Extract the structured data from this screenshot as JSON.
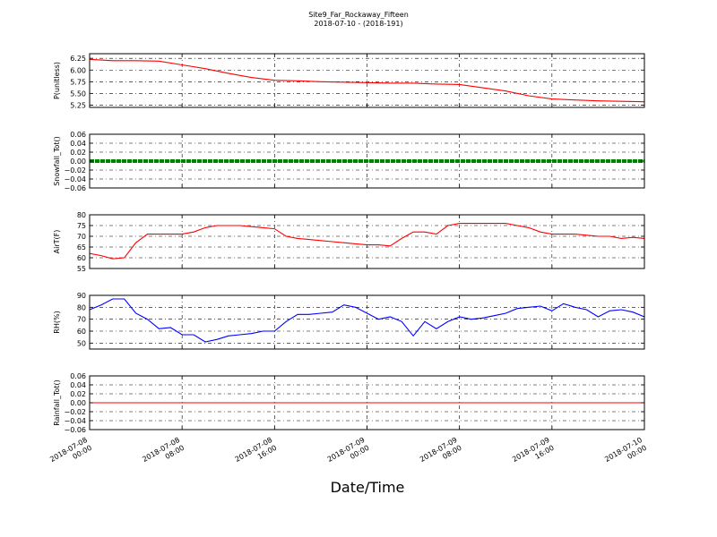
{
  "title": "Site9_Far_Rockaway_Fifteen",
  "subtitle": "2018-07-10 - (2018-191)",
  "xlabel": "Date/Time",
  "x_ticks": [
    [
      "2018-07-08",
      "00:00"
    ],
    [
      "2018-07-08",
      "08:00"
    ],
    [
      "2018-07-08",
      "16:00"
    ],
    [
      "2018-07-09",
      "00:00"
    ],
    [
      "2018-07-09",
      "08:00"
    ],
    [
      "2018-07-09",
      "16:00"
    ],
    [
      "2018-07-10",
      "00:00"
    ]
  ],
  "colors": {
    "red": "#ff0000",
    "green": "#008000",
    "blue": "#0000ff"
  },
  "chart_data": [
    {
      "type": "line",
      "ylabel": "P(unitless)",
      "color": "#ff0000",
      "ylim": [
        5.2,
        6.35
      ],
      "yticks": [
        "5.25",
        "5.50",
        "5.75",
        "6.00",
        "6.25"
      ],
      "ytick_values": [
        5.25,
        5.5,
        5.75,
        6.0,
        6.25
      ],
      "grid": true,
      "x": [
        0,
        2,
        4,
        6,
        8,
        10,
        12,
        14,
        16,
        18,
        20,
        22,
        24,
        26,
        28,
        30,
        32,
        34,
        36,
        38,
        40,
        42,
        44,
        46,
        48
      ],
      "values": [
        6.23,
        6.2,
        6.2,
        6.19,
        6.11,
        6.03,
        5.93,
        5.84,
        5.78,
        5.77,
        5.75,
        5.74,
        5.73,
        5.72,
        5.72,
        5.7,
        5.69,
        5.62,
        5.55,
        5.45,
        5.38,
        5.36,
        5.34,
        5.33,
        5.32
      ]
    },
    {
      "type": "line",
      "ylabel": "Snowfall_Tot()",
      "color": "#008000",
      "ylim": [
        -0.06,
        0.06
      ],
      "yticks": [
        "−0.06",
        "−0.04",
        "−0.02",
        "0.00",
        "0.02",
        "0.04",
        "0.06"
      ],
      "ytick_values": [
        -0.06,
        -0.04,
        -0.02,
        0.0,
        0.02,
        0.04,
        0.06
      ],
      "grid": true,
      "x": [
        0,
        48
      ],
      "values": [
        0.0,
        0.0
      ]
    },
    {
      "type": "line",
      "ylabel": "AirT(F)",
      "color": "#ff0000",
      "ylim": [
        55,
        80
      ],
      "yticks": [
        "55",
        "60",
        "65",
        "70",
        "75",
        "80"
      ],
      "ytick_values": [
        55,
        60,
        65,
        70,
        75,
        80
      ],
      "grid": true,
      "x": [
        0,
        1,
        2,
        3,
        4,
        5,
        6,
        7,
        8,
        9,
        10,
        11,
        12,
        13,
        14,
        15,
        16,
        17,
        18,
        19,
        20,
        21,
        22,
        23,
        24,
        25,
        26,
        27,
        28,
        29,
        30,
        31,
        32,
        33,
        34,
        35,
        36,
        37,
        38,
        39,
        40,
        41,
        42,
        43,
        44,
        45,
        46,
        47,
        48
      ],
      "values": [
        62,
        61,
        59.5,
        60,
        67,
        71,
        71,
        71,
        71,
        72,
        74,
        75,
        75,
        75,
        74.5,
        74,
        73.5,
        70,
        69,
        68.5,
        68,
        67.5,
        67,
        66.5,
        66,
        66,
        65.5,
        69,
        72,
        72,
        71,
        75,
        76,
        76,
        76,
        76,
        76,
        75,
        74,
        72,
        71,
        71,
        71,
        70.5,
        70,
        70,
        69,
        69.5,
        69
      ]
    },
    {
      "type": "line",
      "ylabel": "RH(%)",
      "color": "#0000ff",
      "ylim": [
        45,
        90
      ],
      "yticks": [
        "50",
        "60",
        "70",
        "80",
        "90"
      ],
      "ytick_values": [
        50,
        60,
        70,
        80,
        90
      ],
      "grid": true,
      "x": [
        0,
        1,
        2,
        3,
        4,
        5,
        6,
        7,
        8,
        9,
        10,
        11,
        12,
        13,
        14,
        15,
        16,
        17,
        18,
        19,
        20,
        21,
        22,
        23,
        24,
        25,
        26,
        27,
        28,
        29,
        30,
        31,
        32,
        33,
        34,
        35,
        36,
        37,
        38,
        39,
        40,
        41,
        42,
        43,
        44,
        45,
        46,
        47,
        48
      ],
      "values": [
        78,
        82,
        87,
        87,
        75,
        70,
        62,
        63,
        57,
        57,
        51,
        53,
        56,
        57,
        58,
        60,
        60,
        68,
        74,
        74,
        75,
        76,
        82,
        80,
        75,
        70,
        72,
        68,
        56,
        68,
        62,
        68,
        72,
        70,
        71,
        73,
        75,
        79,
        80,
        81,
        77,
        83,
        80,
        78,
        72,
        77,
        78,
        76,
        72
      ]
    },
    {
      "type": "line",
      "ylabel": "Rainfall_Tot()",
      "color": "#ff0000",
      "ylim": [
        -0.06,
        0.06
      ],
      "yticks": [
        "−0.06",
        "−0.04",
        "−0.02",
        "0.00",
        "0.02",
        "0.04",
        "0.06"
      ],
      "ytick_values": [
        -0.06,
        -0.04,
        -0.02,
        0.0,
        0.02,
        0.04,
        0.06
      ],
      "grid": true,
      "x": [
        0,
        48
      ],
      "values": [
        0.0,
        0.0
      ]
    }
  ]
}
